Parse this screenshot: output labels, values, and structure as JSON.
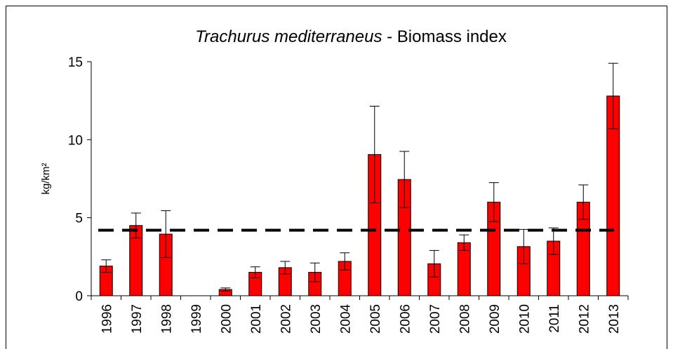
{
  "chart_data": {
    "type": "bar",
    "title_parts": [
      "Trachurus mediterraneus",
      " - Biomass index"
    ],
    "y_label": "kg/km²",
    "categories": [
      "1996",
      "1997",
      "1998",
      "1999",
      "2000",
      "2001",
      "2002",
      "2003",
      "2004",
      "2005",
      "2006",
      "2007",
      "2008",
      "2009",
      "2010",
      "2011",
      "2012",
      "2013"
    ],
    "values": [
      1.9,
      4.5,
      3.95,
      0,
      0.4,
      1.5,
      1.8,
      1.5,
      2.2,
      9.05,
      7.45,
      2.05,
      3.4,
      6.0,
      3.15,
      3.5,
      6.0,
      12.8
    ],
    "errors": [
      0.4,
      0.8,
      1.5,
      0,
      0.1,
      0.35,
      0.4,
      0.6,
      0.55,
      3.1,
      1.8,
      0.85,
      0.5,
      1.25,
      1.1,
      0.85,
      1.1,
      2.1
    ],
    "color": "#ff0000",
    "reference_line": 4.2,
    "ylim": [
      0,
      15
    ],
    "yticks": [
      0,
      5,
      10,
      15
    ],
    "grid": false
  }
}
